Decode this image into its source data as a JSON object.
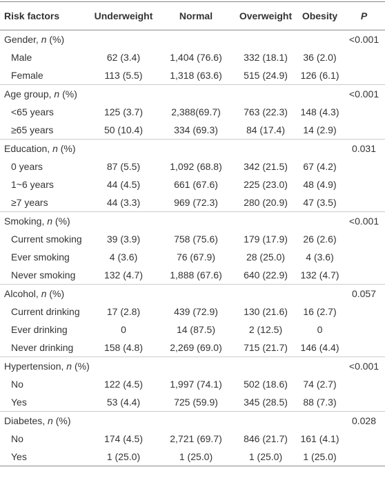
{
  "table": {
    "header": [
      "Risk factors",
      "Underweight",
      "Normal",
      "Overweight",
      "Obesity",
      "P"
    ],
    "groups": [
      {
        "label_parts": [
          "Gender, ",
          "n",
          " (%)"
        ],
        "p": "<0.001",
        "rows": [
          {
            "label": "Male",
            "values": [
              "62 (3.4)",
              "1,404 (76.6)",
              "332 (18.1)",
              "36 (2.0)"
            ]
          },
          {
            "label": "Female",
            "values": [
              "113 (5.5)",
              "1,318 (63.6)",
              "515 (24.9)",
              "126 (6.1)"
            ]
          }
        ]
      },
      {
        "label_parts": [
          "Age group, ",
          "n",
          " (%)"
        ],
        "p": "<0.001",
        "rows": [
          {
            "label": "<65 years",
            "values": [
              "125 (3.7)",
              "2,388(69.7)",
              "763 (22.3)",
              "148 (4.3)"
            ]
          },
          {
            "label": "≥65 years",
            "values": [
              "50 (10.4)",
              "334 (69.3)",
              "84 (17.4)",
              "14 (2.9)"
            ]
          }
        ]
      },
      {
        "label_parts": [
          "Education, ",
          "n",
          " (%)"
        ],
        "p": "0.031",
        "rows": [
          {
            "label": "0 years",
            "values": [
              "87 (5.5)",
              "1,092 (68.8)",
              "342 (21.5)",
              "67 (4.2)"
            ]
          },
          {
            "label": "1~6 years",
            "values": [
              "44 (4.5)",
              "661 (67.6)",
              "225 (23.0)",
              "48 (4.9)"
            ]
          },
          {
            "label": "≥7 years",
            "values": [
              "44 (3.3)",
              "969 (72.3)",
              "280 (20.9)",
              "47 (3.5)"
            ]
          }
        ]
      },
      {
        "label_parts": [
          "Smoking, ",
          "n",
          " (%)"
        ],
        "p": "<0.001",
        "rows": [
          {
            "label": "Current smoking",
            "values": [
              "39 (3.9)",
              "758 (75.6)",
              "179 (17.9)",
              "26 (2.6)"
            ]
          },
          {
            "label": "Ever smoking",
            "values": [
              "4 (3.6)",
              "76 (67.9)",
              "28 (25.0)",
              "4 (3.6)"
            ]
          },
          {
            "label": "Never smoking",
            "values": [
              "132 (4.7)",
              "1,888 (67.6)",
              "640 (22.9)",
              "132 (4.7)"
            ]
          }
        ]
      },
      {
        "label_parts": [
          "Alcohol, ",
          "n",
          " (%)"
        ],
        "p": "0.057",
        "rows": [
          {
            "label": "Current drinking",
            "values": [
              "17 (2.8)",
              "439 (72.9)",
              "130 (21.6)",
              "16 (2.7)"
            ]
          },
          {
            "label": "Ever drinking",
            "values": [
              "0",
              "14 (87.5)",
              "2 (12.5)",
              "0"
            ]
          },
          {
            "label": "Never drinking",
            "values": [
              "158 (4.8)",
              "2,269 (69.0)",
              "715 (21.7)",
              "146 (4.4)"
            ]
          }
        ]
      },
      {
        "label_parts": [
          "Hypertension, ",
          "n",
          " (%)"
        ],
        "p": "<0.001",
        "rows": [
          {
            "label": "No",
            "values": [
              "122 (4.5)",
              "1,997 (74.1)",
              "502 (18.6)",
              "74 (2.7)"
            ]
          },
          {
            "label": "Yes",
            "values": [
              "53 (4.4)",
              "725 (59.9)",
              "345 (28.5)",
              "88 (7.3)"
            ]
          }
        ]
      },
      {
        "label_parts": [
          "Diabetes, ",
          "n",
          " (%)"
        ],
        "p": "0.028",
        "rows": [
          {
            "label": "No",
            "values": [
              "174 (4.5)",
              "2,721 (69.7)",
              "846 (21.7)",
              "161 (4.1)"
            ]
          },
          {
            "label": "Yes",
            "values": [
              "1 (25.0)",
              "1 (25.0)",
              "1 (25.0)",
              "1 (25.0)"
            ]
          }
        ]
      }
    ]
  }
}
